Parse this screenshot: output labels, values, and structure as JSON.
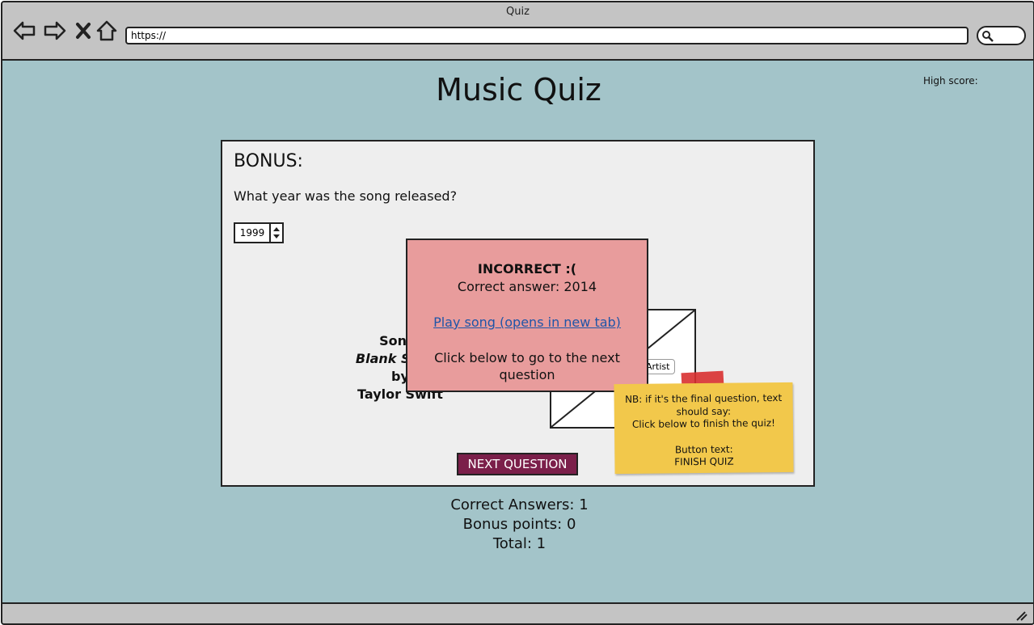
{
  "window": {
    "title": "Quiz"
  },
  "browser": {
    "url": "https://",
    "icons": [
      "back-icon",
      "forward-icon",
      "stop-icon",
      "home-icon",
      "search-icon"
    ]
  },
  "page": {
    "title": "Music Quiz",
    "high_score_label": "High score:"
  },
  "question_card": {
    "heading": "BONUS:",
    "question": "What year was the song released?",
    "year_value": "1999",
    "song_prefix": "Song:",
    "song_title": "Blank Space",
    "by": "by",
    "artist": "Taylor Swift",
    "image_placeholder_label": "Artist",
    "next_button": "NEXT QUESTION"
  },
  "modal": {
    "heading": "INCORRECT :(",
    "correct_answer": "Correct answer: 2014",
    "link_text": "Play song (opens in new tab)",
    "instruction": "Click below to go to the next question"
  },
  "sticky_note": {
    "line1": "NB: if it's the final question, text",
    "line2": "should say:",
    "line3": "Click below to finish the quiz!",
    "line4": "Button text:",
    "line5": "FINISH QUIZ"
  },
  "scores": {
    "correct": "Correct Answers: 1",
    "bonus": "Bonus points: 0",
    "total": "Total: 1"
  },
  "colors": {
    "background": "#a3c4c9",
    "modal": "#e89c9c",
    "button": "#7b1f4a",
    "sticky": "#f2c84b",
    "link": "#1f55a8"
  }
}
